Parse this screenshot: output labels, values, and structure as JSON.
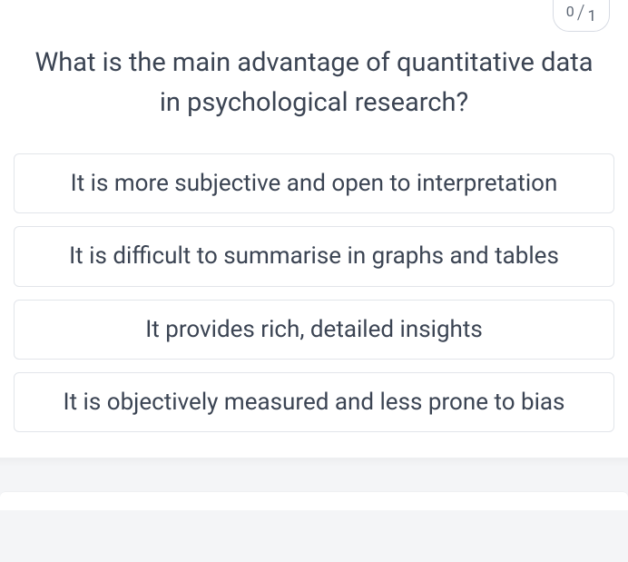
{
  "score": {
    "numerator": "0",
    "separator": "/",
    "denominator": "1"
  },
  "question": "What is the main advantage of quantitative data in psychological research?",
  "options": [
    "It is more subjective and open to interpretation",
    "It is difficult to summarise in graphs and tables",
    "It provides rich, detailed insights",
    "It is objectively measured and less prone to bias"
  ]
}
